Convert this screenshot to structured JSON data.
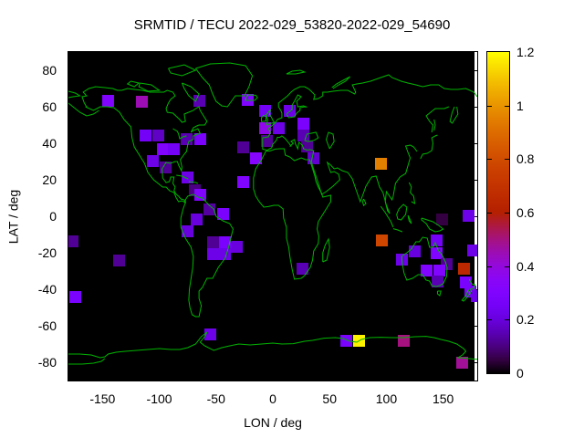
{
  "title": "SRMTID / TECU 2022-029_53820-2022-029_54690",
  "x_axis": {
    "label": "LON / deg",
    "range": [
      -180,
      180
    ],
    "tick_labels": [
      "-150",
      "-100",
      "-50",
      "0",
      "50",
      "100",
      "150"
    ],
    "tick_values": [
      -150,
      -100,
      -50,
      0,
      50,
      100,
      150
    ]
  },
  "y_axis": {
    "label": "LAT / deg",
    "range": [
      -90,
      90
    ],
    "tick_labels": [
      "80",
      "60",
      "40",
      "20",
      "0",
      "-20",
      "-40",
      "-60",
      "-80"
    ],
    "tick_values": [
      80,
      60,
      40,
      20,
      0,
      -20,
      -40,
      -60,
      -80
    ]
  },
  "colorbar": {
    "range": [
      0,
      1.2
    ],
    "tick_labels": [
      "0",
      "0.2",
      "0.4",
      "0.6",
      "0.8",
      "1",
      "1.2"
    ],
    "tick_values": [
      0,
      0.2,
      0.4,
      0.6,
      0.8,
      1.0,
      1.2
    ],
    "palette": "gnuplot pm3d rgbformulae 7,5,15 (black-violet-magenta-red-orange-yellow)"
  },
  "colors": {
    "page_bg": "#ffffff",
    "plot_bg": "#000000",
    "coastline": "#00b400",
    "text": "#000000",
    "border": "#000000"
  },
  "chart_data": {
    "type": "heatmap",
    "title": "SRMTID / TECU 2022-029_53820-2022-029_54690",
    "xlabel": "LON / deg",
    "ylabel": "LAT / deg",
    "xlim": [
      -180,
      180
    ],
    "ylim": [
      -90,
      90
    ],
    "value_unit": "TECU",
    "value_range": [
      0,
      1.2
    ],
    "marker": "filled square ~13px on black world map with green coastlines",
    "points": [
      {
        "lon": -176,
        "lat": -13.5,
        "value": 0.12
      },
      {
        "lon": -174,
        "lat": -44,
        "value": 0.27
      },
      {
        "lon": -135.5,
        "lat": -24,
        "value": 0.12
      },
      {
        "lon": -145,
        "lat": 63.5,
        "value": 0.3
      },
      {
        "lon": -115,
        "lat": 63,
        "value": 0.45
      },
      {
        "lon": -64.5,
        "lat": 63.5,
        "value": 0.15
      },
      {
        "lon": -22,
        "lat": 64,
        "value": 0.3
      },
      {
        "lon": -112,
        "lat": 44.5,
        "value": 0.25
      },
      {
        "lon": -101,
        "lat": 44.5,
        "value": 0.17
      },
      {
        "lon": -76,
        "lat": 42.5,
        "value": 0.15
      },
      {
        "lon": -64,
        "lat": 42.5,
        "value": 0.28
      },
      {
        "lon": -97,
        "lat": 37,
        "value": 0.3
      },
      {
        "lon": -87,
        "lat": 37,
        "value": 0.25
      },
      {
        "lon": -106,
        "lat": 30.5,
        "value": 0.22
      },
      {
        "lon": -94.5,
        "lat": 27,
        "value": 0.12
      },
      {
        "lon": -75,
        "lat": 21.5,
        "value": 0.22
      },
      {
        "lon": -68.5,
        "lat": 14.5,
        "value": 0.1
      },
      {
        "lon": -63.5,
        "lat": 12,
        "value": 0.3
      },
      {
        "lon": -26.5,
        "lat": 38,
        "value": 0.12
      },
      {
        "lon": -14.5,
        "lat": 32,
        "value": 0.33
      },
      {
        "lon": -26.5,
        "lat": 19,
        "value": 0.3
      },
      {
        "lon": -6.5,
        "lat": 58,
        "value": 0.25
      },
      {
        "lon": 15,
        "lat": 58,
        "value": 0.22
      },
      {
        "lon": -6.5,
        "lat": 48.5,
        "value": 0.38
      },
      {
        "lon": 5,
        "lat": 48.5,
        "value": 0.22
      },
      {
        "lon": 27,
        "lat": 51,
        "value": 0.28
      },
      {
        "lon": 27,
        "lat": 44.5,
        "value": 0.15
      },
      {
        "lon": -5.5,
        "lat": 41.5,
        "value": 0.12
      },
      {
        "lon": 30,
        "lat": 38.5,
        "value": 0.12
      },
      {
        "lon": 36,
        "lat": 32,
        "value": 0.18
      },
      {
        "lon": 95.5,
        "lat": 28.8,
        "value": 0.95
      },
      {
        "lon": 26,
        "lat": -28.5,
        "value": 0.15
      },
      {
        "lon": 96,
        "lat": -13,
        "value": 0.78
      },
      {
        "lon": -75,
        "lat": -8,
        "value": 0.2
      },
      {
        "lon": -67,
        "lat": -1.5,
        "value": 0.2
      },
      {
        "lon": -56,
        "lat": 4,
        "value": 0.13
      },
      {
        "lon": -44,
        "lat": 1.5,
        "value": 0.28
      },
      {
        "lon": -52.5,
        "lat": -14,
        "value": 0.12
      },
      {
        "lon": -42,
        "lat": -14,
        "value": 0.28
      },
      {
        "lon": -52.5,
        "lat": -20.5,
        "value": 0.22
      },
      {
        "lon": -42,
        "lat": -20.5,
        "value": 0.22
      },
      {
        "lon": -32,
        "lat": -16.5,
        "value": 0.2
      },
      {
        "lon": 149,
        "lat": -1.5,
        "value": 0.05
      },
      {
        "lon": 172,
        "lat": 0.5,
        "value": 0.22
      },
      {
        "lon": 176,
        "lat": -18.5,
        "value": 0.22
      },
      {
        "lon": 114,
        "lat": -23.7,
        "value": 0.22
      },
      {
        "lon": 125,
        "lat": -19,
        "value": 0.2
      },
      {
        "lon": 144,
        "lat": -13,
        "value": 0.25
      },
      {
        "lon": 144,
        "lat": -20,
        "value": 0.3
      },
      {
        "lon": 153,
        "lat": -26,
        "value": 0.12
      },
      {
        "lon": 135.5,
        "lat": -29.5,
        "value": 0.3
      },
      {
        "lon": 147,
        "lat": -29.5,
        "value": 0.3
      },
      {
        "lon": 145,
        "lat": -35.7,
        "value": 0.15
      },
      {
        "lon": 168,
        "lat": -28.5,
        "value": 0.65
      },
      {
        "lon": 170,
        "lat": -36,
        "value": 0.27
      },
      {
        "lon": 174,
        "lat": -41,
        "value": 0.28
      },
      {
        "lon": 179.5,
        "lat": -43.5,
        "value": 0.22
      },
      {
        "lon": -55,
        "lat": -64.5,
        "value": 0.22
      },
      {
        "lon": 65,
        "lat": -68,
        "value": 0.27
      },
      {
        "lon": 76,
        "lat": -68,
        "value": 1.18
      },
      {
        "lon": 115,
        "lat": -68,
        "value": 0.5
      },
      {
        "lon": 166.5,
        "lat": -80,
        "value": 0.48
      }
    ]
  }
}
